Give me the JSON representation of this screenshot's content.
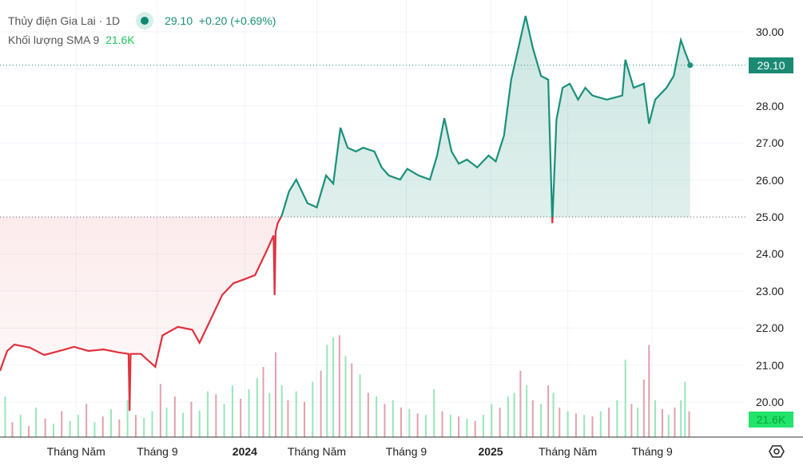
{
  "legend": {
    "symbol": "Thủy điện Gia Lai",
    "interval": "1D",
    "last": "29.10",
    "change": "+0.20",
    "change_pct": "(+0.69%)",
    "volume_label": "Khối lượng SMA 9",
    "volume_value": "21.6K"
  },
  "colors": {
    "up": "#1a9079",
    "down": "#e0303c",
    "volume_up": "#7ee0a8",
    "volume_down": "#d98a96",
    "price_tag": "#1a8a73",
    "volume_tag": "#22e36b"
  },
  "price_tag": "29.10",
  "volume_tag": "21.6K",
  "chart_data": {
    "type": "line",
    "style": "baseline",
    "baseline": 25.0,
    "ylim": [
      19.2,
      30.8
    ],
    "yticks": [
      "30.00",
      "28.00",
      "27.00",
      "26.00",
      "25.00",
      "24.00",
      "23.00",
      "22.00",
      "21.00",
      "20.00"
    ],
    "xticks": [
      {
        "label": "Tháng Năm",
        "day": 74,
        "bold": false
      },
      {
        "label": "Tháng 9",
        "day": 153,
        "bold": false
      },
      {
        "label": "2024",
        "day": 238,
        "bold": true
      },
      {
        "label": "Tháng Năm",
        "day": 308,
        "bold": false
      },
      {
        "label": "Tháng 9",
        "day": 395,
        "bold": false
      },
      {
        "label": "2025",
        "day": 477,
        "bold": true
      },
      {
        "label": "Tháng Năm",
        "day": 552,
        "bold": false
      },
      {
        "label": "Tháng 9",
        "day": 634,
        "bold": false
      }
    ],
    "xlim": [
      0,
      724
    ],
    "points": [
      [
        0,
        20.84
      ],
      [
        7,
        21.38
      ],
      [
        14,
        21.55
      ],
      [
        29,
        21.47
      ],
      [
        43,
        21.27
      ],
      [
        58,
        21.38
      ],
      [
        72,
        21.49
      ],
      [
        86,
        21.38
      ],
      [
        101,
        21.42
      ],
      [
        115,
        21.34
      ],
      [
        125,
        21.3
      ],
      [
        126,
        19.76
      ],
      [
        127,
        21.3
      ],
      [
        137,
        21.3
      ],
      [
        151,
        20.95
      ],
      [
        158,
        21.8
      ],
      [
        173,
        22.03
      ],
      [
        187,
        21.95
      ],
      [
        194,
        21.6
      ],
      [
        205,
        22.24
      ],
      [
        216,
        22.89
      ],
      [
        227,
        23.21
      ],
      [
        238,
        23.32
      ],
      [
        248,
        23.43
      ],
      [
        259,
        24.07
      ],
      [
        266,
        24.5
      ],
      [
        267,
        22.89
      ],
      [
        268,
        24.6
      ],
      [
        270,
        24.83
      ],
      [
        274,
        25.04
      ],
      [
        281,
        25.69
      ],
      [
        288,
        26.01
      ],
      [
        299,
        25.37
      ],
      [
        308,
        25.26
      ],
      [
        317,
        26.12
      ],
      [
        324,
        25.9
      ],
      [
        331,
        27.41
      ],
      [
        338,
        26.87
      ],
      [
        346,
        26.77
      ],
      [
        353,
        26.87
      ],
      [
        364,
        26.77
      ],
      [
        371,
        26.34
      ],
      [
        378,
        26.12
      ],
      [
        389,
        26.01
      ],
      [
        396,
        26.3
      ],
      [
        407,
        26.12
      ],
      [
        418,
        26.01
      ],
      [
        425,
        26.66
      ],
      [
        432,
        27.67
      ],
      [
        439,
        26.77
      ],
      [
        446,
        26.44
      ],
      [
        454,
        26.55
      ],
      [
        464,
        26.34
      ],
      [
        475,
        26.66
      ],
      [
        482,
        26.5
      ],
      [
        490,
        27.2
      ],
      [
        497,
        28.71
      ],
      [
        504,
        29.57
      ],
      [
        511,
        30.43
      ],
      [
        518,
        29.57
      ],
      [
        526,
        28.81
      ],
      [
        533,
        28.71
      ],
      [
        537,
        24.83
      ],
      [
        541,
        27.63
      ],
      [
        547,
        28.49
      ],
      [
        554,
        28.6
      ],
      [
        562,
        28.17
      ],
      [
        569,
        28.49
      ],
      [
        576,
        28.28
      ],
      [
        590,
        28.17
      ],
      [
        605,
        28.28
      ],
      [
        608,
        29.25
      ],
      [
        616,
        28.49
      ],
      [
        626,
        28.6
      ],
      [
        631,
        27.52
      ],
      [
        637,
        28.17
      ],
      [
        648,
        28.49
      ],
      [
        655,
        28.81
      ],
      [
        662,
        29.78
      ],
      [
        666,
        29.46
      ],
      [
        671,
        29.1
      ]
    ],
    "volume": {
      "unit": "K",
      "ylim": [
        0,
        160
      ],
      "sma": 21.6,
      "bars": [
        [
          5,
          55,
          1
        ],
        [
          12,
          20,
          0
        ],
        [
          20,
          30,
          1
        ],
        [
          28,
          15,
          0
        ],
        [
          35,
          40,
          1
        ],
        [
          44,
          25,
          0
        ],
        [
          52,
          18,
          1
        ],
        [
          60,
          35,
          0
        ],
        [
          68,
          22,
          1
        ],
        [
          76,
          30,
          1
        ],
        [
          84,
          45,
          0
        ],
        [
          92,
          20,
          1
        ],
        [
          100,
          28,
          0
        ],
        [
          108,
          38,
          1
        ],
        [
          116,
          24,
          0
        ],
        [
          124,
          50,
          1
        ],
        [
          132,
          30,
          0
        ],
        [
          140,
          26,
          1
        ],
        [
          148,
          35,
          1
        ],
        [
          156,
          72,
          0
        ],
        [
          162,
          40,
          1
        ],
        [
          170,
          55,
          0
        ],
        [
          178,
          33,
          1
        ],
        [
          186,
          48,
          0
        ],
        [
          194,
          36,
          1
        ],
        [
          202,
          62,
          1
        ],
        [
          210,
          58,
          0
        ],
        [
          218,
          45,
          1
        ],
        [
          226,
          70,
          1
        ],
        [
          234,
          52,
          0
        ],
        [
          242,
          65,
          1
        ],
        [
          250,
          80,
          1
        ],
        [
          256,
          95,
          0
        ],
        [
          262,
          60,
          1
        ],
        [
          268,
          115,
          0
        ],
        [
          274,
          70,
          1
        ],
        [
          280,
          50,
          0
        ],
        [
          288,
          62,
          1
        ],
        [
          296,
          48,
          0
        ],
        [
          304,
          75,
          1
        ],
        [
          312,
          90,
          0
        ],
        [
          318,
          125,
          1
        ],
        [
          324,
          135,
          1
        ],
        [
          330,
          138,
          0
        ],
        [
          336,
          110,
          1
        ],
        [
          342,
          100,
          0
        ],
        [
          350,
          85,
          1
        ],
        [
          358,
          60,
          0
        ],
        [
          366,
          55,
          1
        ],
        [
          374,
          45,
          0
        ],
        [
          382,
          50,
          1
        ],
        [
          390,
          40,
          0
        ],
        [
          398,
          38,
          1
        ],
        [
          406,
          32,
          0
        ],
        [
          414,
          30,
          1
        ],
        [
          422,
          65,
          1
        ],
        [
          430,
          35,
          0
        ],
        [
          438,
          30,
          1
        ],
        [
          446,
          28,
          0
        ],
        [
          454,
          25,
          1
        ],
        [
          462,
          22,
          0
        ],
        [
          470,
          30,
          1
        ],
        [
          478,
          45,
          1
        ],
        [
          486,
          40,
          0
        ],
        [
          494,
          55,
          1
        ],
        [
          500,
          60,
          1
        ],
        [
          506,
          90,
          0
        ],
        [
          512,
          70,
          1
        ],
        [
          518,
          50,
          0
        ],
        [
          526,
          45,
          1
        ],
        [
          533,
          70,
          0
        ],
        [
          538,
          60,
          1
        ],
        [
          544,
          40,
          0
        ],
        [
          552,
          35,
          1
        ],
        [
          560,
          32,
          0
        ],
        [
          568,
          30,
          1
        ],
        [
          576,
          28,
          0
        ],
        [
          584,
          35,
          1
        ],
        [
          592,
          40,
          0
        ],
        [
          600,
          50,
          1
        ],
        [
          608,
          105,
          1
        ],
        [
          614,
          45,
          0
        ],
        [
          620,
          40,
          1
        ],
        [
          626,
          78,
          0
        ],
        [
          631,
          125,
          0
        ],
        [
          637,
          50,
          1
        ],
        [
          644,
          38,
          0
        ],
        [
          650,
          30,
          1
        ],
        [
          656,
          40,
          0
        ],
        [
          662,
          50,
          1
        ],
        [
          666,
          75,
          1
        ],
        [
          670,
          35,
          0
        ]
      ]
    }
  }
}
